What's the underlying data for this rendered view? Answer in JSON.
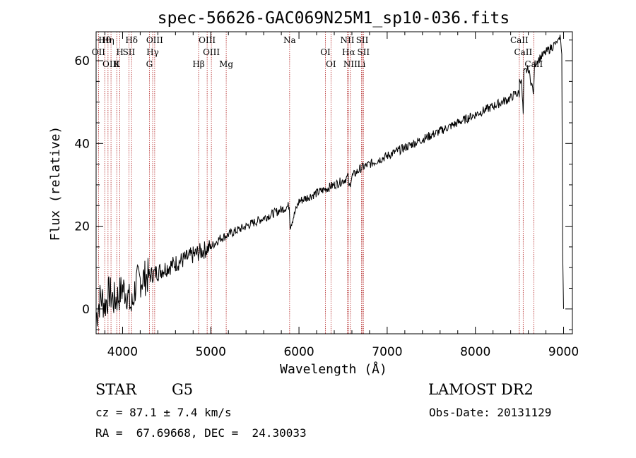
{
  "chart_data": {
    "type": "line",
    "title": "spec-56626-GAC069N25M1_sp10-036.fits",
    "xlabel": "Wavelength (Å)",
    "ylabel": "Flux (relative)",
    "xlim": [
      3700,
      9100
    ],
    "ylim": [
      -6,
      67
    ],
    "x_ticks": [
      4000,
      5000,
      6000,
      7000,
      8000,
      9000
    ],
    "y_ticks": [
      0,
      20,
      40,
      60
    ],
    "grid": false,
    "series": [
      {
        "x": [
          3700,
          3750,
          3800,
          3850,
          3900,
          3950,
          4000,
          4050,
          4100,
          4150,
          4200,
          4300,
          4400,
          4500,
          4600,
          4700,
          4800,
          4900,
          5000,
          5100,
          5200,
          5300,
          5400,
          5500,
          5600,
          5700,
          5800,
          5890,
          5900,
          6000,
          6100,
          6200,
          6300,
          6400,
          6500,
          6560,
          6563,
          6600,
          6700,
          6800,
          6900,
          7000,
          7100,
          7200,
          7300,
          7400,
          7500,
          7600,
          7700,
          7800,
          7900,
          8000,
          8100,
          8200,
          8300,
          8400,
          8450,
          8498,
          8500,
          8520,
          8542,
          8550,
          8600,
          8662,
          8670,
          8700,
          8750,
          8800,
          8850,
          8900,
          8950,
          8960,
          8980,
          8990,
          9000
        ],
        "y": [
          -2,
          3,
          1,
          4,
          2,
          3,
          5,
          4,
          0,
          6,
          7,
          8,
          9,
          10,
          11,
          12,
          13,
          14,
          15,
          17,
          18,
          19,
          20,
          21,
          22,
          23,
          24,
          25,
          20,
          26,
          27,
          28,
          29,
          30,
          31,
          32,
          29,
          32,
          34,
          35,
          36,
          37,
          38,
          39,
          40,
          41,
          42,
          43,
          44,
          45,
          46,
          47,
          48,
          49,
          50,
          51,
          52,
          52,
          55,
          56,
          47,
          57,
          58,
          52,
          59,
          60,
          61,
          62,
          63,
          64,
          65,
          66,
          62,
          13,
          0
        ]
      }
    ],
    "emission_lines": [
      {
        "label": "Hθ",
        "wavelength": 3798
      },
      {
        "label": "OII",
        "wavelength": 3727
      },
      {
        "label": "OIII",
        "wavelength": 3869
      },
      {
        "label": "Hη",
        "wavelength": 3835
      },
      {
        "label": "H",
        "wavelength": 3969
      },
      {
        "label": "K",
        "wavelength": 3934
      },
      {
        "label": "Hδ",
        "wavelength": 4102
      },
      {
        "label": "SII",
        "wavelength": 4072
      },
      {
        "label": "G",
        "wavelength": 4304
      },
      {
        "label": "OIII",
        "wavelength": 4364
      },
      {
        "label": "Hγ",
        "wavelength": 4341
      },
      {
        "label": "Hβ",
        "wavelength": 4862
      },
      {
        "label": "OIII",
        "wavelength": 4959
      },
      {
        "label": "OIII",
        "wavelength": 5007
      },
      {
        "label": "Mg",
        "wavelength": 5175
      },
      {
        "label": "Na",
        "wavelength": 5894
      },
      {
        "label": "OI",
        "wavelength": 6300
      },
      {
        "label": "OI",
        "wavelength": 6363
      },
      {
        "label": "NII",
        "wavelength": 6548
      },
      {
        "label": "Hα",
        "wavelength": 6563
      },
      {
        "label": "NII",
        "wavelength": 6583
      },
      {
        "label": "SII",
        "wavelength": 6717
      },
      {
        "label": "SII",
        "wavelength": 6731
      },
      {
        "label": "Li",
        "wavelength": 6708
      },
      {
        "label": "CaII",
        "wavelength": 8498
      },
      {
        "label": "CaII",
        "wavelength": 8542
      },
      {
        "label": "CaII",
        "wavelength": 8662
      }
    ]
  },
  "info": {
    "object_class": "STAR",
    "subclass": "G5",
    "survey": "LAMOST DR2",
    "redshift": "cz = 87.1 ± 7.4 km/s",
    "obs_date": "Obs-Date: 20131129",
    "coords": "RA =  67.69668, DEC =  24.30033"
  },
  "colors": {
    "line_marker": "#b22222",
    "spectrum": "#000000",
    "axes": "#000000"
  }
}
